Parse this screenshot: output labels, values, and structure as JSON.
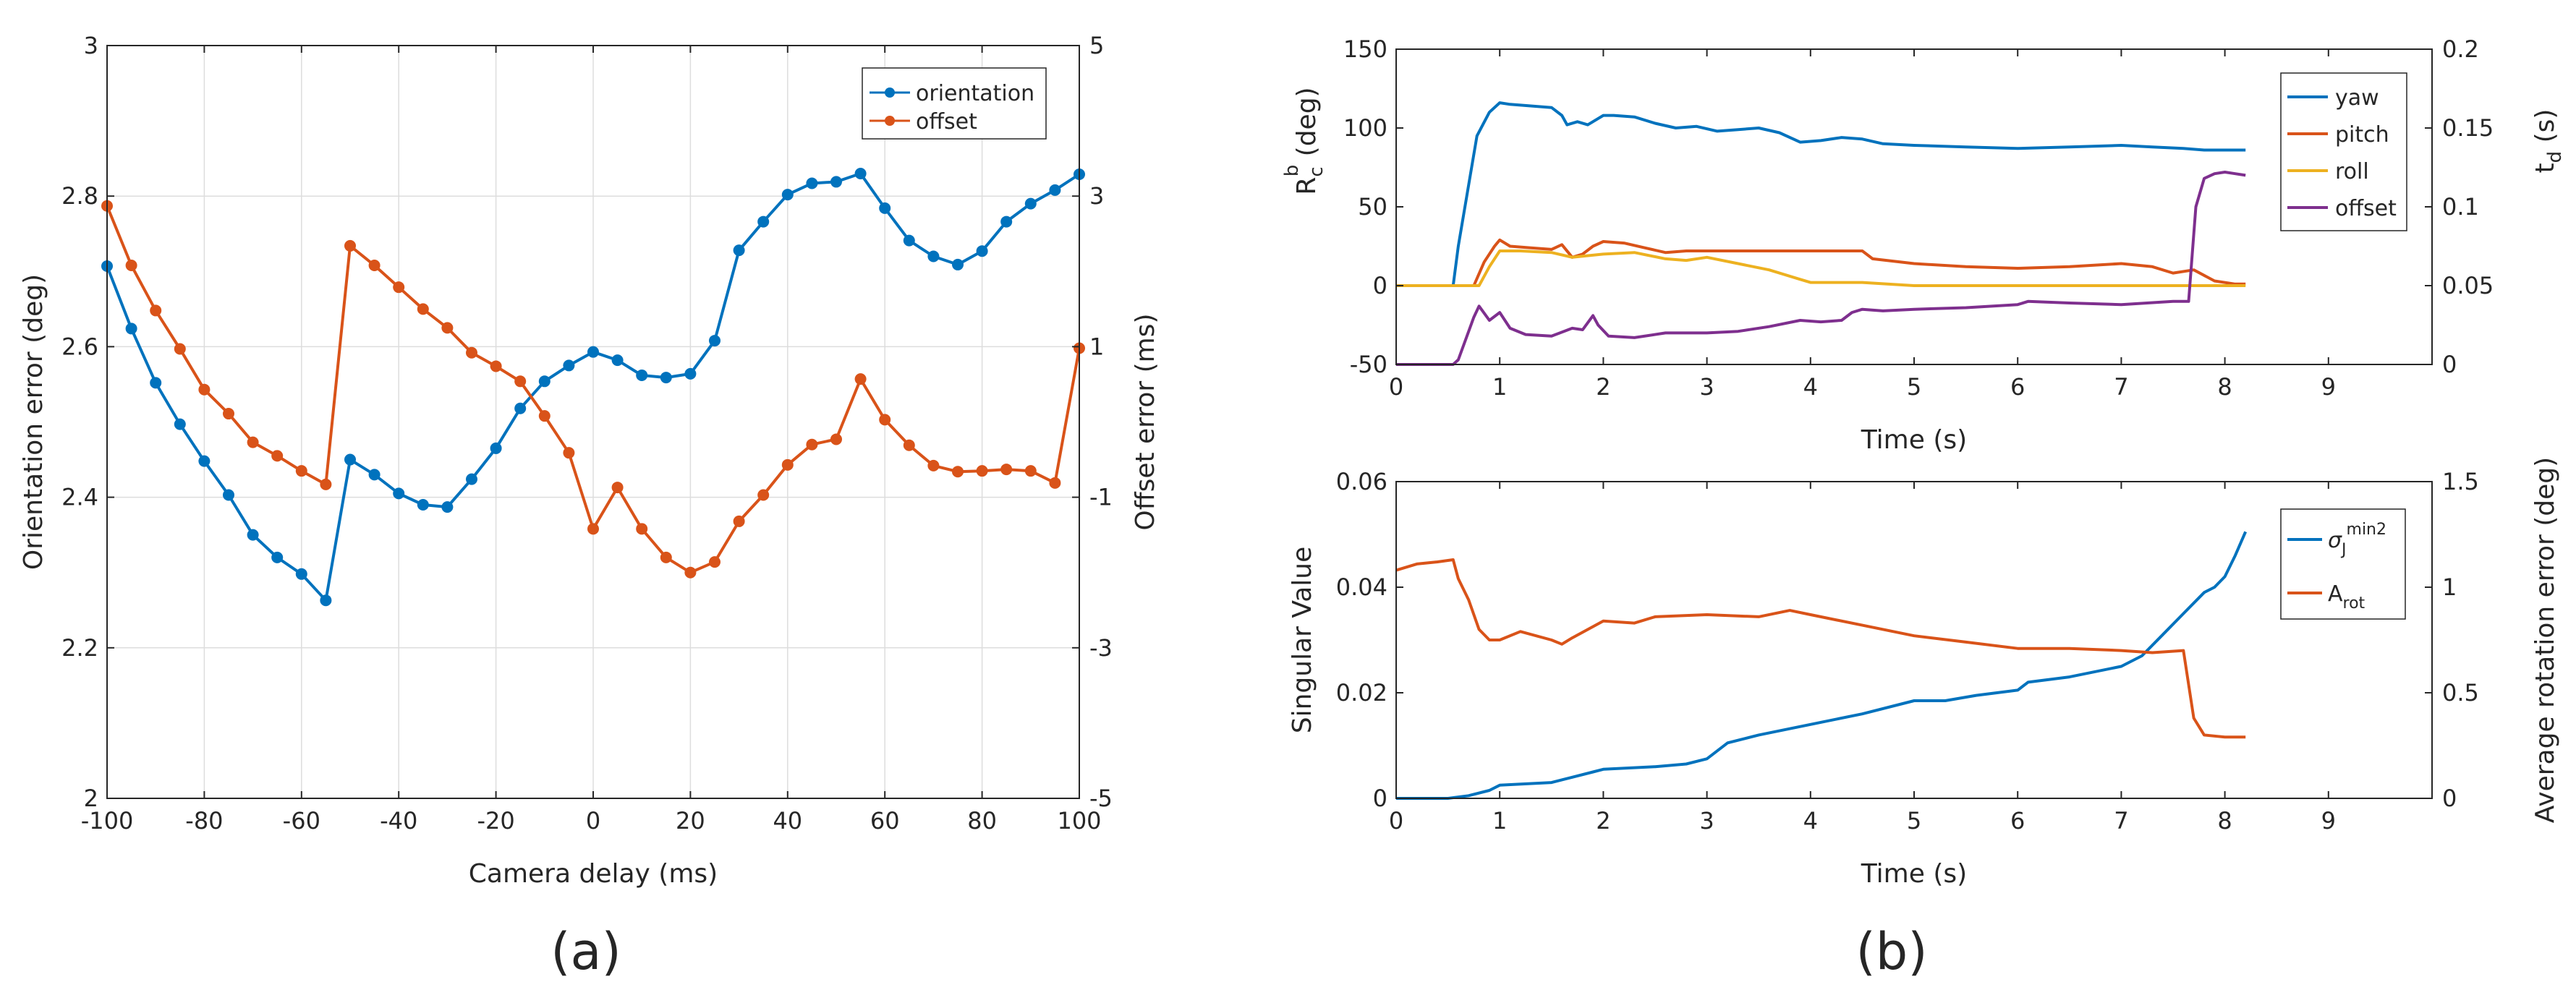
{
  "colors": {
    "blue": "#0072BD",
    "orange": "#D95319",
    "yellow": "#EDB120",
    "purple": "#7E2F8E",
    "grid": "#dddddd",
    "axis": "#262626"
  },
  "panel_labels": {
    "a": "(a)",
    "b": "(b)"
  },
  "chart_data": [
    {
      "id": "a",
      "type": "line",
      "xlabel": "Camera delay (ms)",
      "ylabel_left": "Orientation error (deg)",
      "ylabel_right": "Offset error (ms)",
      "xlim": [
        -100,
        100
      ],
      "ylim_left": [
        2,
        3
      ],
      "ylim_right": [
        -5,
        5
      ],
      "xticks": [
        -100,
        -80,
        -60,
        -40,
        -20,
        0,
        20,
        40,
        60,
        80,
        100
      ],
      "xtick_labels": [
        "-100",
        "-80",
        "-60",
        "-40",
        "-20",
        "0",
        "20",
        "40",
        "60",
        "80",
        "100"
      ],
      "yticks_left": [
        2,
        2.2,
        2.4,
        2.6,
        2.8,
        3
      ],
      "ytick_labels_left": [
        "2",
        "2.2",
        "2.4",
        "2.6",
        "2.8",
        "3"
      ],
      "yticks_right": [
        -5,
        -3,
        -1,
        1,
        3,
        5
      ],
      "ytick_labels_right": [
        "-5",
        "-3",
        "-1",
        "1",
        "3",
        "5"
      ],
      "grid": true,
      "legend": "top-right",
      "markers": true,
      "x": [
        -100,
        -95,
        -90,
        -85,
        -80,
        -75,
        -70,
        -65,
        -60,
        -55,
        -50,
        -45,
        -40,
        -35,
        -30,
        -25,
        -20,
        -15,
        -10,
        -5,
        0,
        5,
        10,
        15,
        20,
        25,
        30,
        35,
        40,
        45,
        50,
        55,
        60,
        65,
        70,
        75,
        80,
        85,
        90,
        95,
        100
      ],
      "series": [
        {
          "name": "orientation",
          "axis": "left",
          "color": "#0072BD",
          "values": [
            2.707,
            2.624,
            2.552,
            2.497,
            2.448,
            2.403,
            2.35,
            2.32,
            2.298,
            2.263,
            2.45,
            2.43,
            2.405,
            2.39,
            2.387,
            2.424,
            2.465,
            2.518,
            2.554,
            2.575,
            2.593,
            2.582,
            2.562,
            2.559,
            2.564,
            2.608,
            2.728,
            2.766,
            2.802,
            2.817,
            2.819,
            2.83,
            2.784,
            2.741,
            2.72,
            2.709,
            2.727,
            2.766,
            2.79,
            2.808,
            2.829
          ]
        },
        {
          "name": "offset",
          "axis": "right",
          "color": "#D95319",
          "values": [
            2.87,
            2.08,
            1.48,
            0.97,
            0.43,
            0.11,
            -0.27,
            -0.45,
            -0.65,
            -0.83,
            2.34,
            2.08,
            1.79,
            1.5,
            1.25,
            0.92,
            0.74,
            0.54,
            0.08,
            -0.41,
            -1.42,
            -0.87,
            -1.42,
            -1.8,
            -2.0,
            -1.86,
            -1.32,
            -0.97,
            -0.57,
            -0.3,
            -0.23,
            0.57,
            0.03,
            -0.31,
            -0.58,
            -0.66,
            -0.65,
            -0.63,
            -0.65,
            -0.81,
            0.98
          ]
        }
      ]
    },
    {
      "id": "b-top",
      "type": "line",
      "xlabel": "Time (s)",
      "ylabel_left": "R_c^b (deg)",
      "ylabel_right": "t_d (s)",
      "xlim": [
        0,
        10
      ],
      "ylim_left": [
        -50,
        150
      ],
      "ylim_right": [
        0,
        0.2
      ],
      "xticks": [
        0,
        1,
        2,
        3,
        4,
        5,
        6,
        7,
        8,
        9
      ],
      "xtick_labels": [
        "0",
        "1",
        "2",
        "3",
        "4",
        "5",
        "6",
        "7",
        "8",
        "9"
      ],
      "yticks_left": [
        -50,
        0,
        50,
        100,
        150
      ],
      "ytick_labels_left": [
        "-50",
        "0",
        "50",
        "100",
        "150"
      ],
      "yticks_right": [
        0,
        0.05,
        0.1,
        0.15,
        0.2
      ],
      "ytick_labels_right": [
        "0",
        "0.05",
        "0.1",
        "0.15",
        "0.2"
      ],
      "grid": false,
      "legend": "top-right",
      "series": [
        {
          "name": "yaw",
          "axis": "left",
          "color": "#0072BD",
          "x": [
            0,
            0.55,
            0.6,
            0.78,
            0.9,
            1.0,
            1.1,
            1.3,
            1.5,
            1.6,
            1.65,
            1.75,
            1.85,
            1.95,
            2.0,
            2.1,
            2.3,
            2.5,
            2.7,
            2.9,
            3.1,
            3.3,
            3.5,
            3.7,
            3.9,
            4.1,
            4.3,
            4.5,
            4.7,
            5.0,
            5.5,
            6.0,
            6.5,
            7.0,
            7.3,
            7.6,
            7.8,
            8.0,
            8.2
          ],
          "values": [
            0,
            0,
            25,
            95,
            110,
            116,
            115,
            114,
            113,
            108,
            102,
            104,
            102,
            106,
            108,
            108,
            107,
            103,
            100,
            101,
            98,
            99,
            100,
            97,
            91,
            92,
            94,
            93,
            90,
            89,
            88,
            87,
            88,
            89,
            88,
            87,
            86,
            86,
            86
          ]
        },
        {
          "name": "pitch",
          "axis": "left",
          "color": "#D95319",
          "x": [
            0,
            0.75,
            0.85,
            0.95,
            1.0,
            1.1,
            1.3,
            1.5,
            1.6,
            1.7,
            1.8,
            1.9,
            2.0,
            2.2,
            2.4,
            2.6,
            2.8,
            3.0,
            3.5,
            4.0,
            4.5,
            4.6,
            5.0,
            5.5,
            6.0,
            6.5,
            7.0,
            7.3,
            7.5,
            7.7,
            7.9,
            8.1,
            8.2
          ],
          "values": [
            0,
            0,
            15,
            25,
            29,
            25,
            24,
            23,
            26,
            18,
            20,
            25,
            28,
            27,
            24,
            21,
            22,
            22,
            22,
            22,
            22,
            17,
            14,
            12,
            11,
            12,
            14,
            12,
            8,
            10,
            3,
            1,
            1
          ]
        },
        {
          "name": "roll",
          "axis": "left",
          "color": "#EDB120",
          "x": [
            0,
            0.8,
            0.9,
            1.0,
            1.2,
            1.5,
            1.7,
            2.0,
            2.3,
            2.6,
            2.8,
            3.0,
            3.3,
            3.6,
            3.9,
            4.0,
            4.5,
            5.0,
            6.0,
            7.0,
            8.0,
            8.2
          ],
          "values": [
            0,
            0,
            12,
            22,
            22,
            21,
            18,
            20,
            21,
            17,
            16,
            18,
            14,
            10,
            4,
            2,
            2,
            0,
            0,
            0,
            0,
            0
          ]
        },
        {
          "name": "offset",
          "axis": "right",
          "color": "#7E2F8E",
          "x": [
            0,
            0.55,
            0.6,
            0.75,
            0.8,
            0.9,
            1.0,
            1.1,
            1.25,
            1.5,
            1.7,
            1.8,
            1.9,
            1.95,
            2.05,
            2.3,
            2.6,
            3.0,
            3.3,
            3.6,
            3.9,
            4.1,
            4.3,
            4.4,
            4.5,
            4.7,
            5.0,
            5.5,
            6.0,
            6.1,
            6.5,
            7.0,
            7.5,
            7.65,
            7.72,
            7.8,
            7.9,
            8.0,
            8.1,
            8.2
          ],
          "values": [
            0,
            0,
            0.003,
            0.03,
            0.037,
            0.028,
            0.033,
            0.023,
            0.019,
            0.018,
            0.023,
            0.022,
            0.031,
            0.025,
            0.018,
            0.017,
            0.02,
            0.02,
            0.021,
            0.024,
            0.028,
            0.027,
            0.028,
            0.033,
            0.035,
            0.034,
            0.035,
            0.036,
            0.038,
            0.04,
            0.039,
            0.038,
            0.04,
            0.04,
            0.1,
            0.118,
            0.121,
            0.122,
            0.121,
            0.12
          ]
        }
      ]
    },
    {
      "id": "b-bottom",
      "type": "line",
      "xlabel": "Time (s)",
      "ylabel_left": "Singular Value",
      "ylabel_right": "Average rotation error (deg)",
      "xlim": [
        0,
        10
      ],
      "ylim_left": [
        0,
        0.06
      ],
      "ylim_right": [
        0,
        1.5
      ],
      "xticks": [
        0,
        1,
        2,
        3,
        4,
        5,
        6,
        7,
        8,
        9
      ],
      "xtick_labels": [
        "0",
        "1",
        "2",
        "3",
        "4",
        "5",
        "6",
        "7",
        "8",
        "9"
      ],
      "yticks_left": [
        0,
        0.02,
        0.04,
        0.06
      ],
      "ytick_labels_left": [
        "0",
        "0.02",
        "0.04",
        "0.06"
      ],
      "yticks_right": [
        0,
        0.5,
        1,
        1.5
      ],
      "ytick_labels_right": [
        "0",
        "0.5",
        "1",
        "1.5"
      ],
      "grid": false,
      "legend": "top-right",
      "series": [
        {
          "name": "σJmin2",
          "legend_base": "σ",
          "legend_sub": "J",
          "legend_sup": "min",
          "legend_suffix": "2",
          "axis": "left",
          "color": "#0072BD",
          "x": [
            0,
            0.5,
            0.7,
            0.9,
            1.0,
            1.5,
            1.7,
            1.9,
            2.0,
            2.5,
            2.8,
            3.0,
            3.2,
            3.5,
            4.0,
            4.5,
            5.0,
            5.3,
            5.6,
            6.0,
            6.1,
            6.5,
            7.0,
            7.2,
            7.4,
            7.6,
            7.8,
            7.9,
            8.0,
            8.1,
            8.2
          ],
          "values": [
            0,
            0,
            0.0005,
            0.0015,
            0.0025,
            0.003,
            0.004,
            0.005,
            0.0055,
            0.006,
            0.0065,
            0.0075,
            0.0105,
            0.012,
            0.014,
            0.016,
            0.0185,
            0.0185,
            0.0195,
            0.0205,
            0.022,
            0.023,
            0.025,
            0.027,
            0.031,
            0.035,
            0.039,
            0.04,
            0.042,
            0.046,
            0.0505
          ]
        },
        {
          "name": "A_rot",
          "legend_base": "A",
          "legend_sub": "rot",
          "axis": "right",
          "color": "#D95319",
          "x": [
            0,
            0.2,
            0.4,
            0.55,
            0.6,
            0.7,
            0.8,
            0.9,
            1.0,
            1.2,
            1.5,
            1.6,
            1.7,
            2.0,
            2.3,
            2.5,
            3.0,
            3.5,
            3.8,
            4.0,
            4.5,
            5.0,
            5.5,
            6.0,
            6.5,
            7.0,
            7.3,
            7.6,
            7.7,
            7.8,
            8.0,
            8.2
          ],
          "values": [
            1.08,
            1.11,
            1.12,
            1.13,
            1.04,
            0.94,
            0.8,
            0.75,
            0.75,
            0.79,
            0.75,
            0.73,
            0.76,
            0.84,
            0.83,
            0.86,
            0.87,
            0.86,
            0.89,
            0.87,
            0.82,
            0.77,
            0.74,
            0.71,
            0.71,
            0.7,
            0.69,
            0.7,
            0.38,
            0.3,
            0.29,
            0.29
          ]
        }
      ]
    }
  ]
}
